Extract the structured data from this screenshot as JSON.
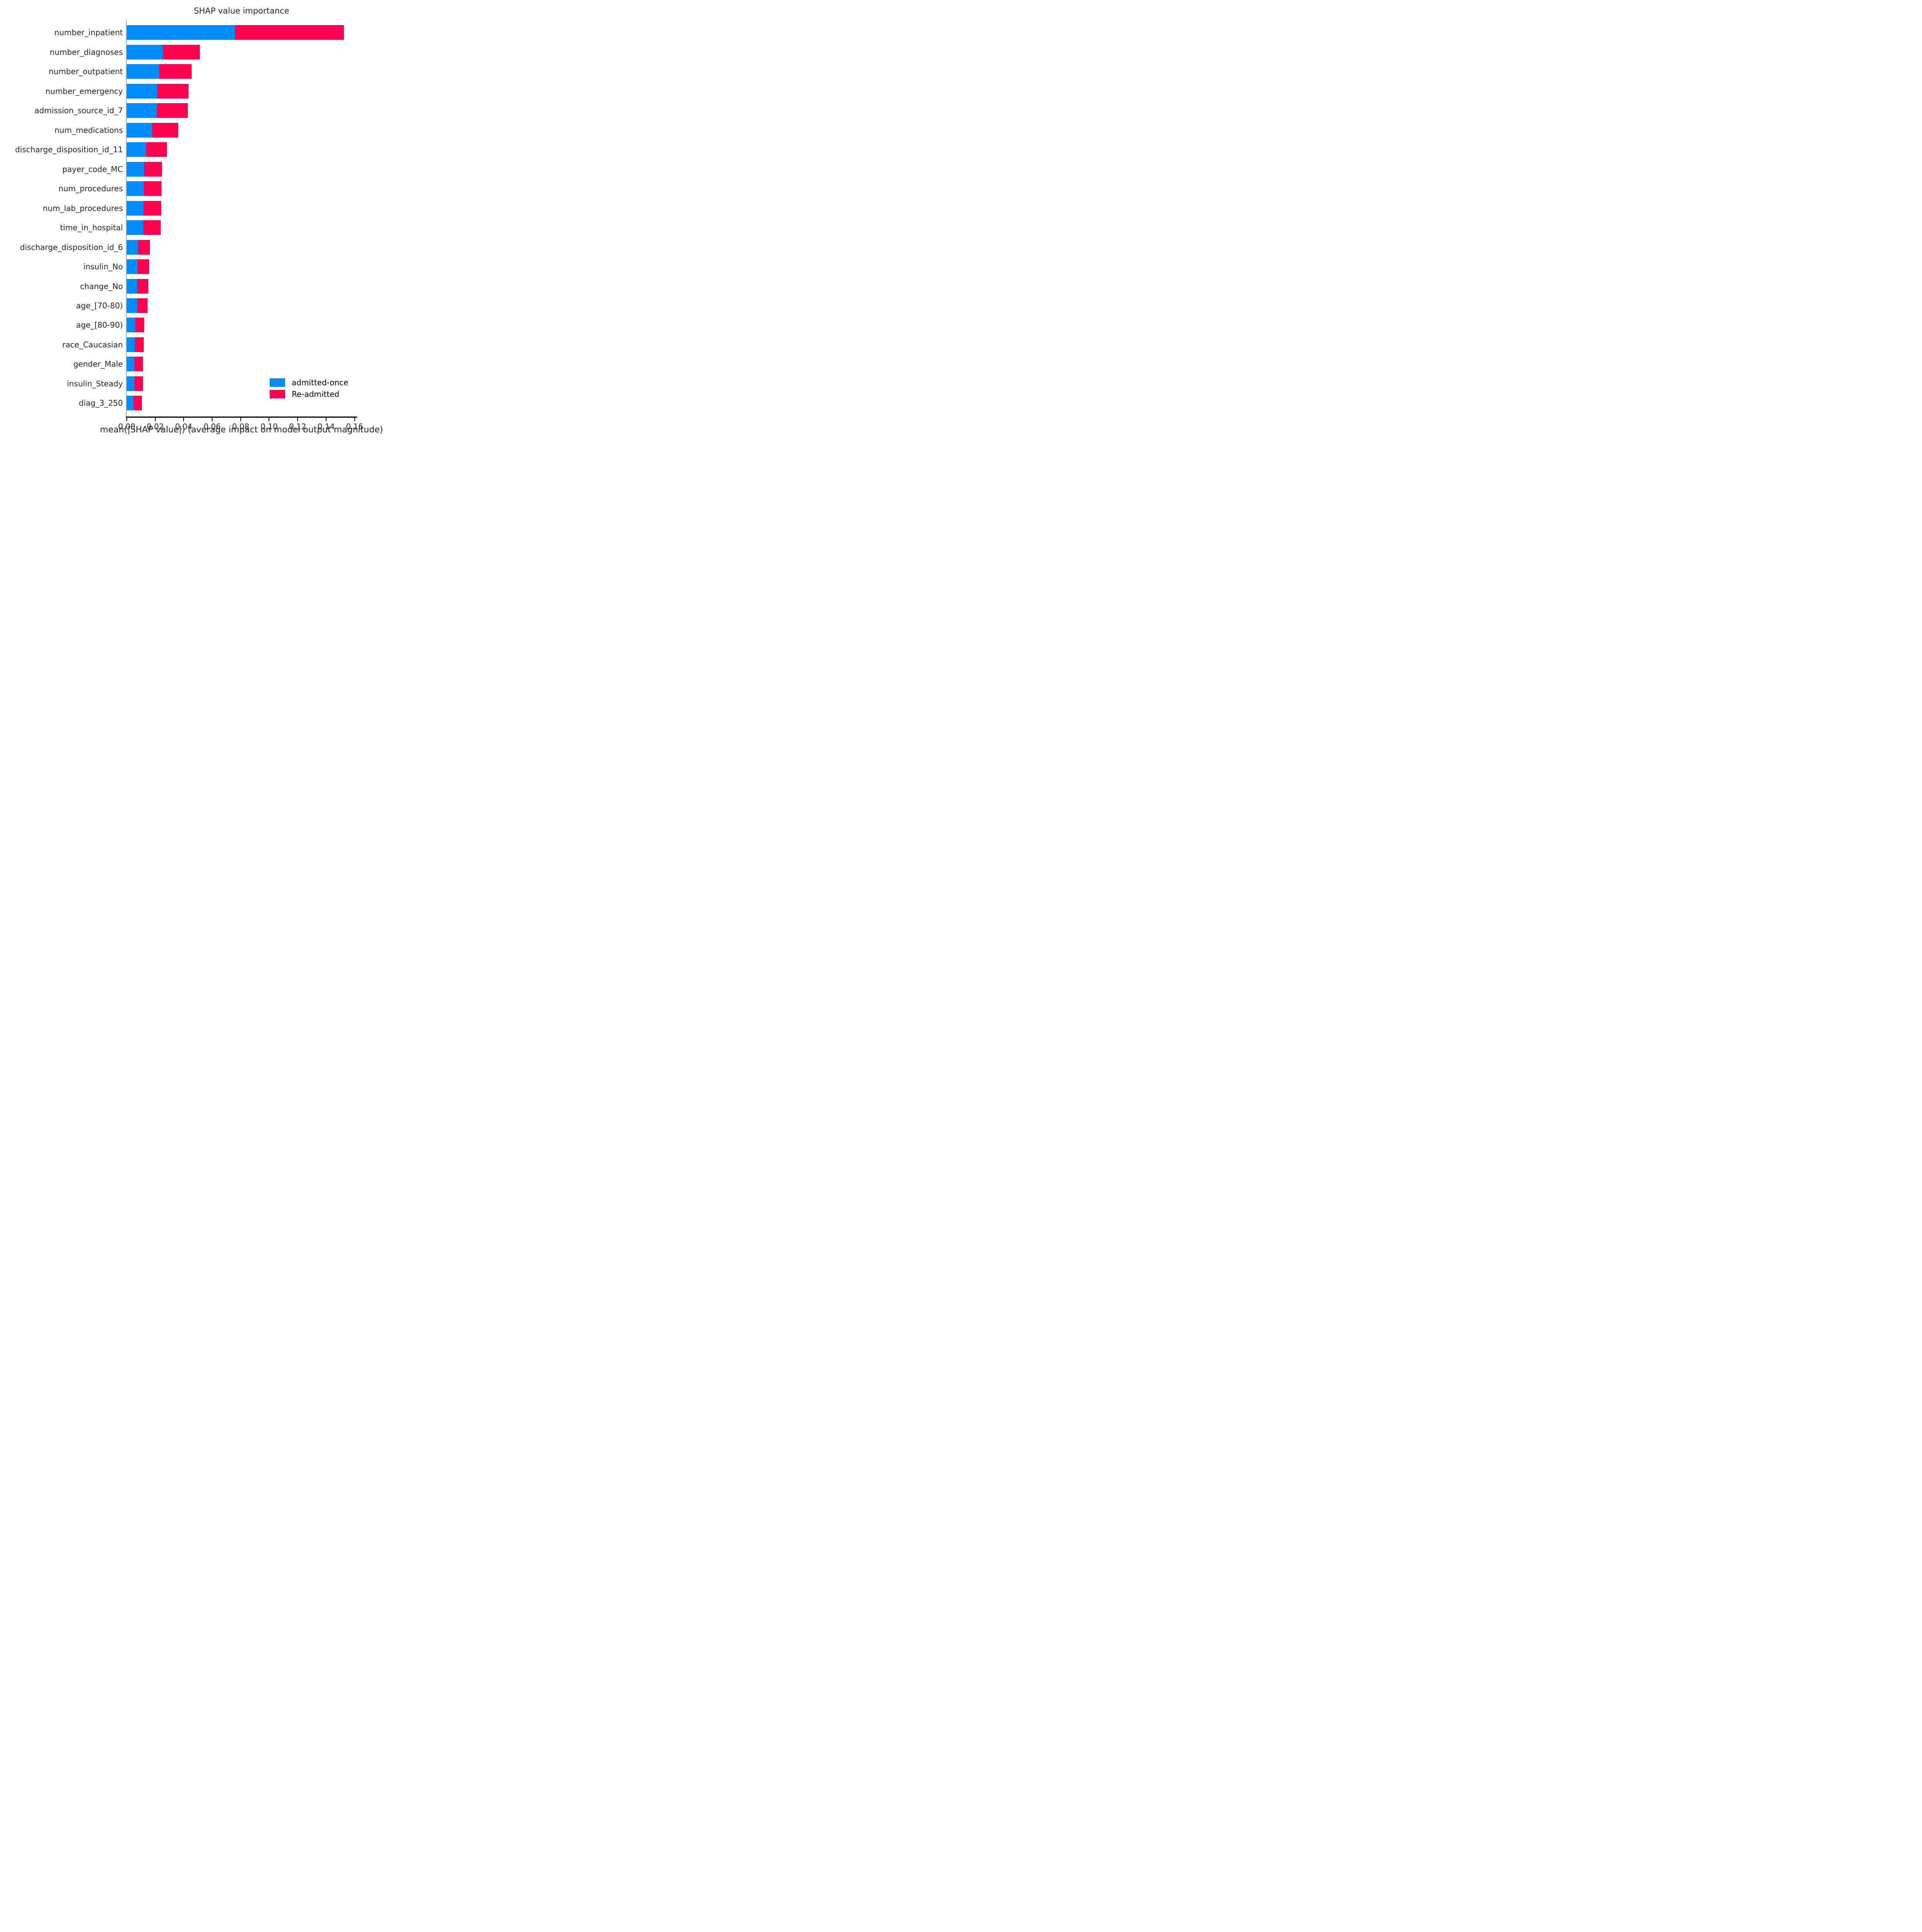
{
  "chart_data": {
    "type": "bar",
    "orientation": "horizontal-stacked",
    "title": "SHAP value importance",
    "xlabel": "mean(|SHAP value|) (average impact on model output magnitude)",
    "ylabel": "",
    "categories": [
      "number_inpatient",
      "number_diagnoses",
      "number_outpatient",
      "number_emergency",
      "admission_source_id_7",
      "num_medications",
      "discharge_disposition_id_11",
      "payer_code_MC",
      "num_procedures",
      "num_lab_procedures",
      "time_in_hospital",
      "discharge_disposition_id_6",
      "insulin_No",
      "change_No",
      "age_[70-80)",
      "age_[80-90)",
      "race_Caucasian",
      "gender_Male",
      "insulin_Steady",
      "diag_3_250"
    ],
    "series": [
      {
        "name": "admitted-once",
        "color": "#008bfb",
        "values": [
          0.0759,
          0.0256,
          0.0227,
          0.0215,
          0.0213,
          0.0179,
          0.0137,
          0.0121,
          0.0119,
          0.0118,
          0.0117,
          0.0079,
          0.0077,
          0.0074,
          0.0072,
          0.0059,
          0.0056,
          0.0055,
          0.0054,
          0.005
        ]
      },
      {
        "name": "Re-admitted",
        "color": "#ff0051",
        "values": [
          0.0765,
          0.0258,
          0.023,
          0.0218,
          0.0217,
          0.0183,
          0.0145,
          0.0127,
          0.0125,
          0.0124,
          0.0122,
          0.0084,
          0.0081,
          0.0077,
          0.0075,
          0.0064,
          0.0063,
          0.006,
          0.006,
          0.0057
        ]
      }
    ],
    "xlim": [
      0,
      0.1612
    ],
    "xticks": [
      0.0,
      0.02,
      0.04,
      0.06,
      0.08,
      0.1,
      0.12,
      0.14,
      0.16
    ],
    "xtick_labels": [
      "0.00",
      "0.02",
      "0.04",
      "0.06",
      "0.08",
      "0.10",
      "0.12",
      "0.14",
      "0.16"
    ],
    "legend_position": "lower right",
    "grid": false,
    "axis_colors": {
      "left_spine": "#a6a6a6",
      "bottom_spine": "#000000"
    }
  }
}
